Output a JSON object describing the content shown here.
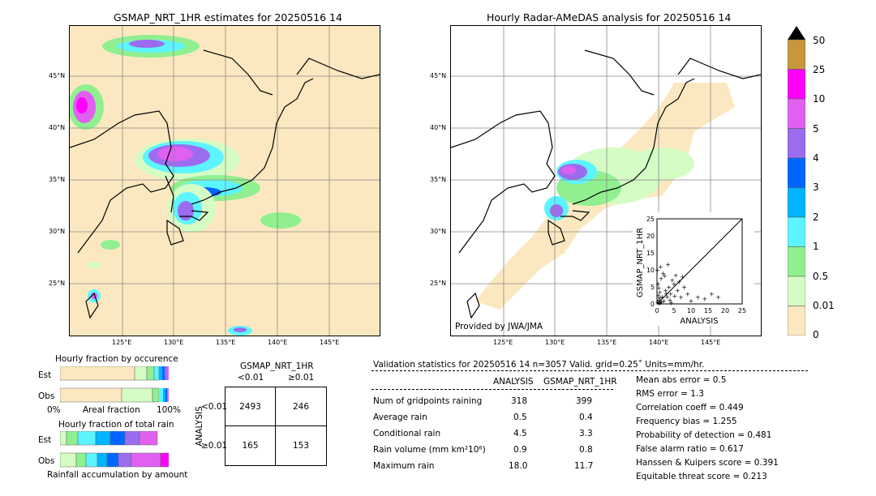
{
  "left_map": {
    "title": "GSMAP_NRT_1HR estimates for 20250516 14",
    "lat_labels": [
      "45°N",
      "40°N",
      "35°N",
      "30°N",
      "25°N"
    ],
    "lon_labels": [
      "125°E",
      "130°E",
      "135°E",
      "140°E",
      "145°E"
    ]
  },
  "right_map": {
    "title": "Hourly Radar-AMeDAS analysis for 20250516 14",
    "lat_labels": [
      "45°N",
      "40°N",
      "35°N",
      "30°N",
      "25°N"
    ],
    "lon_labels": [
      "125°E",
      "130°E",
      "135°E",
      "140°E",
      "145°E"
    ],
    "credit": "Provided by JWA/JMA"
  },
  "colorbar": {
    "labels": [
      "50",
      "25",
      "10",
      "5",
      "4",
      "3",
      "2",
      "1",
      "0.5",
      "0.01",
      "0"
    ],
    "colors": [
      "#c8963c",
      "#ff00ff",
      "#e060f0",
      "#9b6cf0",
      "#0066ff",
      "#00b4ff",
      "#5cf5ff",
      "#90f090",
      "#d4fcc4",
      "#fce8c0"
    ]
  },
  "fraction_charts": {
    "occurrence_title": "Hourly fraction by occurence",
    "total_title": "Hourly fraction of total rain",
    "est_label": "Est",
    "obs_label": "Obs",
    "axis_left": "0%",
    "axis_mid": "Areal fraction",
    "axis_right": "100%",
    "footer": "Rainfall accumulation by amount"
  },
  "contingency": {
    "header": "GSMAP_NRT_1HR",
    "col_lt": "<0.01",
    "col_ge": "≥0.01",
    "row_axis": "ANALYSIS",
    "row_lt": "<0.01",
    "row_ge": "≥0.01",
    "cells": [
      "2493",
      "246",
      "165",
      "153"
    ]
  },
  "validation": {
    "header": "Validation statistics for 20250516 14  n=3057 Valid. grid=0.25˚ Units=mm/hr.",
    "col_analysis": "ANALYSIS",
    "col_gsmap": "GSMAP_NRT_1HR",
    "rows": [
      {
        "label": "Num of gridpoints raining",
        "a": "318",
        "g": "399"
      },
      {
        "label": "Average rain",
        "a": "0.5",
        "g": "0.4"
      },
      {
        "label": "Conditional rain",
        "a": "4.5",
        "g": "3.3"
      },
      {
        "label": "Rain volume (mm km²10⁶)",
        "a": "0.9",
        "g": "0.8"
      },
      {
        "label": "Maximum rain",
        "a": "18.0",
        "g": "11.7"
      }
    ],
    "scores": [
      "Mean abs error =    0.5",
      "RMS error =    1.3",
      "Correlation coeff =  0.449",
      "Frequency bias =  1.255",
      "Probability of detection =  0.481",
      "False alarm ratio =  0.617",
      "Hanssen & Kuipers score =  0.391",
      "Equitable threat score =  0.213"
    ]
  },
  "chart_data": {
    "type": "scatter",
    "xlabel": "ANALYSIS",
    "ylabel": "GSMAP_NRT_1HR",
    "xlim": [
      0,
      25
    ],
    "ylim": [
      0,
      25
    ],
    "xticks": [
      "0",
      "5",
      "10",
      "15",
      "20",
      "25"
    ],
    "yticks": [
      "0",
      "5",
      "10",
      "15",
      "20",
      "25"
    ],
    "points": [
      [
        0.2,
        0.5
      ],
      [
        0.5,
        1.2
      ],
      [
        1,
        0.3
      ],
      [
        1.5,
        2.1
      ],
      [
        0.8,
        3.5
      ],
      [
        2,
        1
      ],
      [
        2.5,
        4
      ],
      [
        3,
        2.2
      ],
      [
        0.3,
        6
      ],
      [
        1.2,
        7.5
      ],
      [
        3.5,
        5
      ],
      [
        4,
        3
      ],
      [
        0.1,
        10
      ],
      [
        1,
        11
      ],
      [
        5,
        6
      ],
      [
        6,
        4
      ],
      [
        7,
        2
      ],
      [
        8,
        5
      ],
      [
        9,
        3
      ],
      [
        10,
        1
      ],
      [
        12,
        2
      ],
      [
        14,
        1.5
      ],
      [
        16,
        3
      ],
      [
        18,
        2
      ],
      [
        0.5,
        4.8
      ],
      [
        2.2,
        8.3
      ],
      [
        4.5,
        7
      ],
      [
        5.5,
        8.5
      ],
      [
        3.2,
        11.7
      ],
      [
        1.8,
        9
      ],
      [
        6.5,
        6.5
      ],
      [
        7.5,
        8
      ],
      [
        0.4,
        2.5
      ],
      [
        0.9,
        1.8
      ],
      [
        1.3,
        0.6
      ],
      [
        2.7,
        3.1
      ],
      [
        3.8,
        1.2
      ],
      [
        4.2,
        0.4
      ],
      [
        5.2,
        2.4
      ],
      [
        0.6,
        0.2
      ]
    ]
  }
}
